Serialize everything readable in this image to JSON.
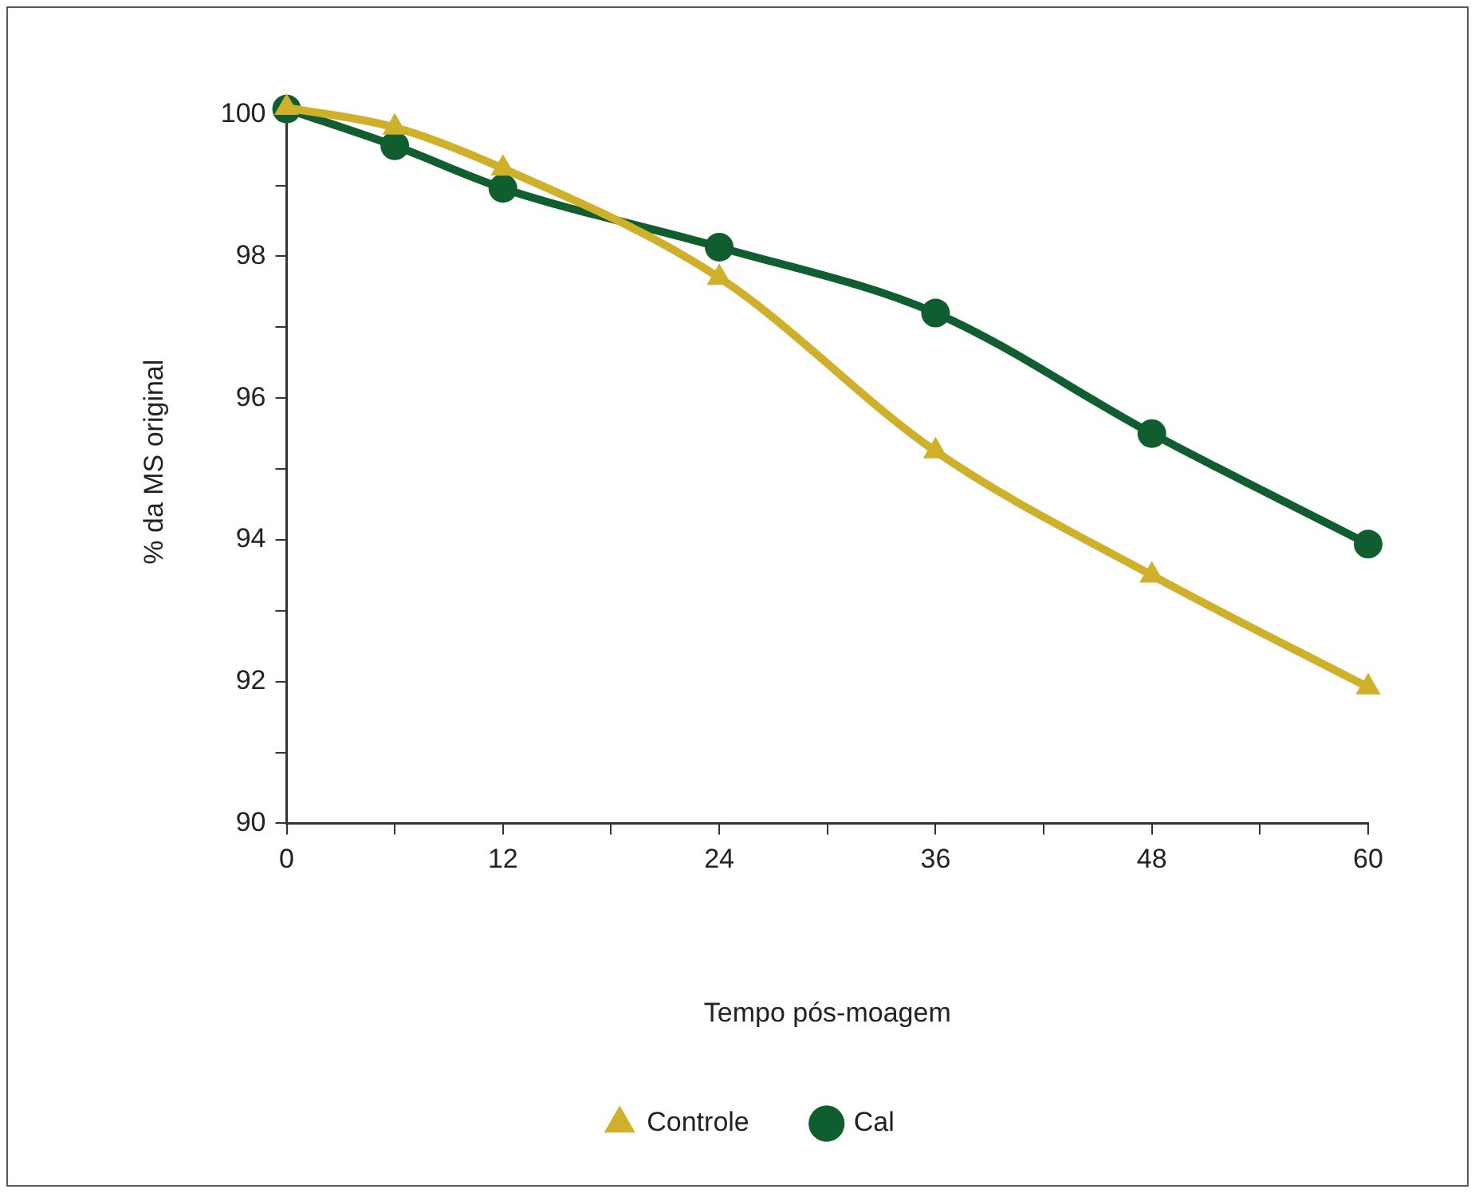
{
  "chart_data": {
    "type": "line",
    "xlabel": "Tempo pós-moagem",
    "ylabel": "% da MS original",
    "x": [
      0,
      6,
      12,
      24,
      36,
      48,
      60
    ],
    "series": [
      {
        "name": "Controle",
        "color": "#cfb02a",
        "marker": "triangle",
        "values": [
          100.1,
          99.82,
          99.24,
          97.7,
          95.25,
          93.5,
          91.92
        ]
      },
      {
        "name": "Cal",
        "color": "#105e2f",
        "marker": "circle",
        "values": [
          100.08,
          99.56,
          98.96,
          98.13,
          97.2,
          95.5,
          93.94
        ]
      }
    ],
    "xlim": [
      0,
      60
    ],
    "ylim": [
      90,
      100.2
    ],
    "xticks": [
      0,
      {
        "value": 6,
        "label": null
      },
      12,
      {
        "value": 18,
        "label": null
      },
      24,
      {
        "value": 30,
        "label": null
      },
      36,
      {
        "value": 42,
        "label": null
      },
      48,
      {
        "value": 54,
        "label": null
      },
      60
    ],
    "yticks": [
      90,
      {
        "value": 91,
        "label": null
      },
      92,
      {
        "value": 93,
        "label": null
      },
      94,
      {
        "value": 95,
        "label": null
      },
      96,
      {
        "value": 97,
        "label": null
      },
      98,
      {
        "value": 99,
        "label": null
      },
      100
    ],
    "grid": false,
    "legend": "bottom",
    "line_style": "solid"
  }
}
